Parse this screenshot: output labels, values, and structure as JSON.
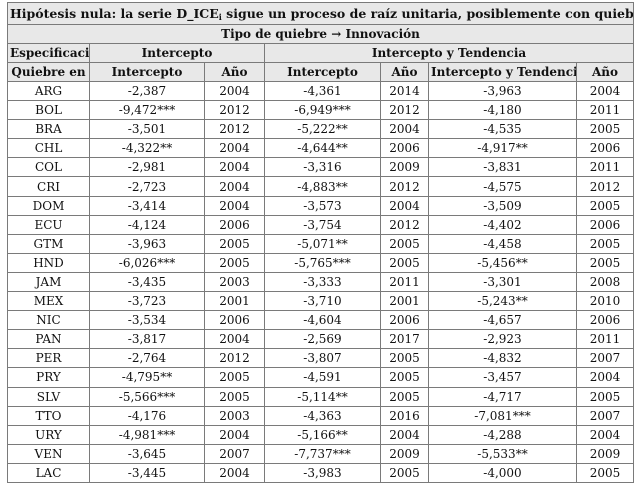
{
  "title": "Hipótesis nula: la serie D_ICE",
  "title_sub": "i",
  "title_rest": " sigue un proceso de raíz unitaria, posiblemente con quiebre.",
  "subtitle": "Tipo de quiebre → Innovación",
  "spec_label": "Especificación →",
  "group_intercept": "Intercepto",
  "group_intercept_trend": "Intercepto y Tendencia",
  "columns": [
    "Quiebre en",
    "Intercepto",
    "Año",
    "Intercepto",
    "Año",
    "Intercepto y Tendencia",
    "Año"
  ],
  "rows": [
    [
      "ARG",
      "-2,387",
      "2004",
      "-4,361",
      "2014",
      "-3,963",
      "2004"
    ],
    [
      "BOL",
      "-9,472***",
      "2012",
      "-6,949***",
      "2012",
      "-4,180",
      "2011"
    ],
    [
      "BRA",
      "-3,501",
      "2012",
      "-5,222**",
      "2004",
      "-4,535",
      "2005"
    ],
    [
      "CHL",
      "-4,322**",
      "2004",
      "-4,644**",
      "2006",
      "-4,917**",
      "2006"
    ],
    [
      "COL",
      "-2,981",
      "2004",
      "-3,316",
      "2009",
      "-3,831",
      "2011"
    ],
    [
      "CRI",
      "-2,723",
      "2004",
      "-4,883**",
      "2012",
      "-4,575",
      "2012"
    ],
    [
      "DOM",
      "-3,414",
      "2004",
      "-3,573",
      "2004",
      "-3,509",
      "2005"
    ],
    [
      "ECU",
      "-4,124",
      "2006",
      "-3,754",
      "2012",
      "-4,402",
      "2006"
    ],
    [
      "GTM",
      "-3,963",
      "2005",
      "-5,071**",
      "2005",
      "-4,458",
      "2005"
    ],
    [
      "HND",
      "-6,026***",
      "2005",
      "-5,765***",
      "2005",
      "-5,456**",
      "2005"
    ],
    [
      "JAM",
      "-3,435",
      "2003",
      "-3,333",
      "2011",
      "-3,301",
      "2008"
    ],
    [
      "MEX",
      "-3,723",
      "2001",
      "-3,710",
      "2001",
      "-5,243**",
      "2010"
    ],
    [
      "NIC",
      "-3,534",
      "2006",
      "-4,604",
      "2006",
      "-4,657",
      "2006"
    ],
    [
      "PAN",
      "-3,817",
      "2004",
      "-2,569",
      "2017",
      "-2,923",
      "2011"
    ],
    [
      "PER",
      "-2,764",
      "2012",
      "-3,807",
      "2005",
      "-4,832",
      "2007"
    ],
    [
      "PRY",
      "-4,795**",
      "2005",
      "-4,591",
      "2005",
      "-3,457",
      "2004"
    ],
    [
      "SLV",
      "-5,566***",
      "2005",
      "-5,114**",
      "2005",
      "-4,717",
      "2005"
    ],
    [
      "TTO",
      "-4,176",
      "2003",
      "-4,363",
      "2016",
      "-7,081***",
      "2007"
    ],
    [
      "URY",
      "-4,981***",
      "2004",
      "-5,166**",
      "2004",
      "-4,288",
      "2004"
    ],
    [
      "VEN",
      "-3,645",
      "2007",
      "-7,737***",
      "2009",
      "-5,533**",
      "2009"
    ],
    [
      "LAC",
      "-3,445",
      "2004",
      "-3,983",
      "2005",
      "-4,000",
      "2005"
    ]
  ]
}
